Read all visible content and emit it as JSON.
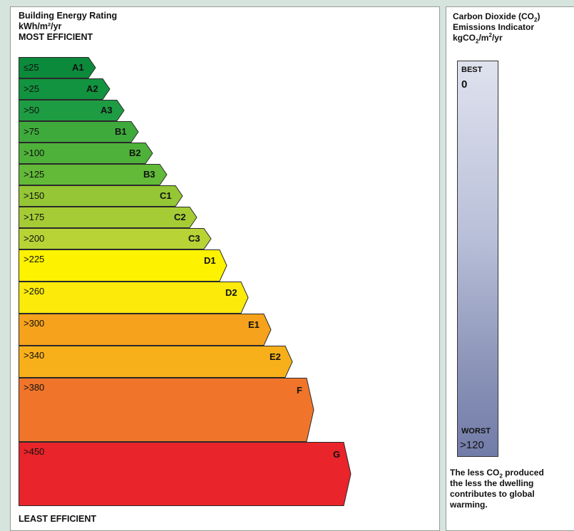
{
  "energy": {
    "title": "Building Energy Rating",
    "unit": "kWh/m²/yr",
    "most_efficient": "MOST EFFICIENT",
    "least_efficient": "LEAST EFFICIENT",
    "bands": [
      {
        "range": "≤25",
        "label": "A1",
        "color": "#0b8a3b"
      },
      {
        "range": ">25",
        "label": "A2",
        "color": "#11933f"
      },
      {
        "range": ">50",
        "label": "A3",
        "color": "#1e9c43"
      },
      {
        "range": ">75",
        "label": "B1",
        "color": "#3faa3c"
      },
      {
        "range": ">100",
        "label": "B2",
        "color": "#4eb13a"
      },
      {
        "range": ">125",
        "label": "B3",
        "color": "#62ba38"
      },
      {
        "range": ">150",
        "label": "C1",
        "color": "#94c635"
      },
      {
        "range": ">175",
        "label": "C2",
        "color": "#a5cc35"
      },
      {
        "range": ">200",
        "label": "C3",
        "color": "#b7d335"
      },
      {
        "range": ">225",
        "label": "D1",
        "color": "#fdf200"
      },
      {
        "range": ">260",
        "label": "D2",
        "color": "#fbea0a"
      },
      {
        "range": ">300",
        "label": "E1",
        "color": "#f6a21c"
      },
      {
        "range": ">340",
        "label": "E2",
        "color": "#f8b01a"
      },
      {
        "range": ">380",
        "label": "F",
        "color": "#f0752a"
      },
      {
        "range": ">450",
        "label": "G",
        "color": "#e9242a"
      }
    ]
  },
  "co2": {
    "title_main": "Carbon Dioxide (CO",
    "title_sub": "2",
    "title_end": ")",
    "title_line2": "Emissions Indicator",
    "unit_a": "kgCO",
    "unit_sub": "2",
    "unit_b": "/m",
    "unit_sup": "2",
    "unit_c": "/yr",
    "best_label": "BEST",
    "best_value": "0",
    "worst_label": "WORST",
    "worst_value": ">120",
    "note_a": "The less CO",
    "note_sub": "2",
    "note_b": " produced",
    "note_line2": "the less the dwelling",
    "note_line3": "contributes to global",
    "note_line4": "warming."
  }
}
